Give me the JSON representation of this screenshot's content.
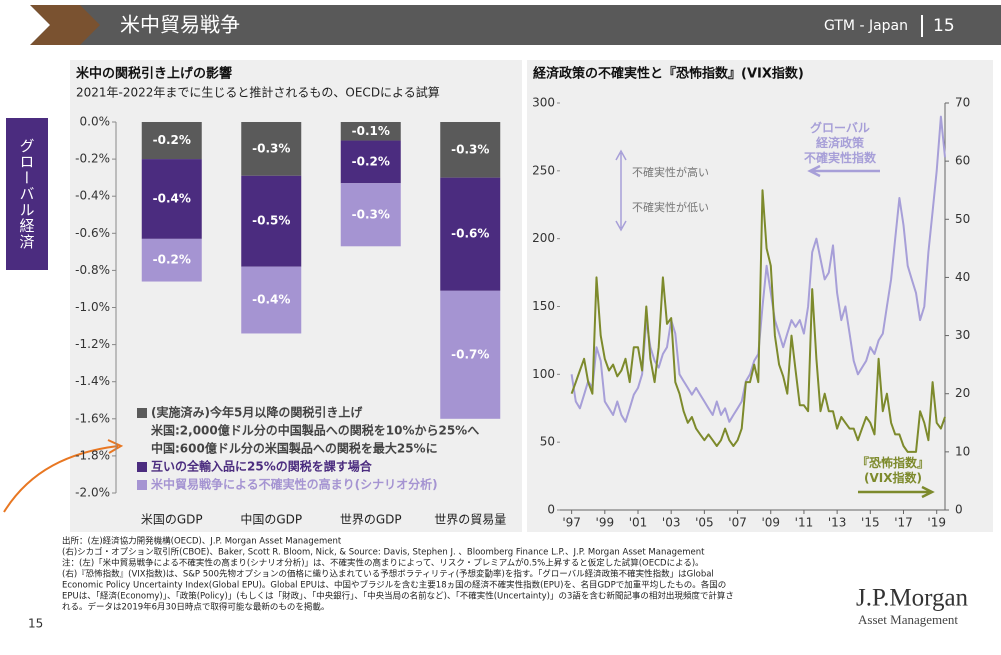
{
  "header": {
    "title": "米中貿易戦争",
    "brand": "GTM - Japan",
    "page": "15"
  },
  "side_tab": "グローバル経済",
  "chart_data": [
    {
      "type": "bar",
      "stacked": true,
      "title": "米中の関税引き上げの影響",
      "subtitle": "2021年-2022年までに生じると推計されるもの、OECDによる試算",
      "categories": [
        "米国のGDP",
        "中国のGDP",
        "世界のGDP",
        "世界の貿易量"
      ],
      "series": [
        {
          "name": "(実施済み)今年5月以降の関税引き上げ",
          "color": "#5a5a5a",
          "values": [
            -0.2,
            -0.29,
            -0.1,
            -0.3
          ],
          "value_labels": [
            "-0.2%",
            "-0.3%",
            "-0.1%",
            "-0.3%"
          ]
        },
        {
          "name": "互いの全輸入品に25%の関税を課す場合",
          "color": "#4b2c7f",
          "values": [
            -0.43,
            -0.49,
            -0.23,
            -0.61
          ],
          "value_labels": [
            "-0.4%",
            "-0.5%",
            "-0.2%",
            "-0.6%"
          ]
        },
        {
          "name": "米中貿易戦争による不確実性の高まり(シナリオ分析)",
          "color": "#a594d2",
          "values": [
            -0.23,
            -0.36,
            -0.34,
            -0.69
          ],
          "value_labels": [
            "-0.2%",
            "-0.4%",
            "-0.3%",
            "-0.7%"
          ]
        }
      ],
      "legend_notes": [
        "米国:2,000億ドル分の中国製品への関税を10%から25%へ",
        "中国:600億ドル分の米国製品への関税を最大25%に"
      ],
      "ylim": [
        -2.0,
        0.0
      ],
      "yticks": [
        {
          "value": 0.0,
          "label": "0.0%"
        },
        {
          "value": -0.2,
          "label": "-0.2%"
        },
        {
          "value": -0.4,
          "label": "-0.4%"
        },
        {
          "value": -0.6,
          "label": "-0.6%"
        },
        {
          "value": -0.8,
          "label": "-0.8%"
        },
        {
          "value": -1.0,
          "label": "-1.0%"
        },
        {
          "value": -1.2,
          "label": "-1.2%"
        },
        {
          "value": -1.4,
          "label": "-1.4%"
        },
        {
          "value": -1.6,
          "label": "-1.6%"
        },
        {
          "value": -1.8,
          "label": "-1.8%"
        },
        {
          "value": -2.0,
          "label": "-2.0%"
        }
      ]
    },
    {
      "type": "line",
      "title": "経済政策の不確実性と『恐怖指数』(VIX指数)",
      "annotations": [
        "不確実性が高い",
        "不確実性が低い"
      ],
      "x": [
        1997,
        1997.25,
        1997.5,
        1997.75,
        1998,
        1998.25,
        1998.5,
        1998.75,
        1999,
        1999.25,
        1999.5,
        1999.75,
        2000,
        2000.25,
        2000.5,
        2000.75,
        2001,
        2001.25,
        2001.5,
        2001.75,
        2002,
        2002.25,
        2002.5,
        2002.75,
        2003,
        2003.25,
        2003.5,
        2003.75,
        2004,
        2004.25,
        2004.5,
        2004.75,
        2005,
        2005.25,
        2005.5,
        2005.75,
        2006,
        2006.25,
        2006.5,
        2006.75,
        2007,
        2007.25,
        2007.5,
        2007.75,
        2008,
        2008.25,
        2008.5,
        2008.75,
        2009,
        2009.25,
        2009.5,
        2009.75,
        2010,
        2010.25,
        2010.5,
        2010.75,
        2011,
        2011.25,
        2011.5,
        2011.75,
        2012,
        2012.25,
        2012.5,
        2012.75,
        2013,
        2013.25,
        2013.5,
        2013.75,
        2014,
        2014.25,
        2014.5,
        2014.75,
        2015,
        2015.25,
        2015.5,
        2015.75,
        2016,
        2016.25,
        2016.5,
        2016.75,
        2017,
        2017.25,
        2017.5,
        2017.75,
        2018,
        2018.25,
        2018.5,
        2018.75,
        2019,
        2019.25,
        2019.5
      ],
      "series": [
        {
          "name": "グローバル\n経済政策\n不確実性指数",
          "color": "#a79fd8",
          "values": [
            100,
            80,
            75,
            85,
            95,
            90,
            120,
            110,
            80,
            75,
            70,
            80,
            70,
            65,
            75,
            85,
            90,
            100,
            140,
            120,
            110,
            105,
            115,
            120,
            140,
            130,
            100,
            95,
            90,
            85,
            90,
            85,
            80,
            75,
            70,
            80,
            70,
            75,
            65,
            70,
            75,
            80,
            95,
            100,
            110,
            115,
            150,
            180,
            160,
            140,
            130,
            120,
            130,
            140,
            135,
            140,
            130,
            150,
            190,
            200,
            185,
            170,
            175,
            195,
            160,
            140,
            150,
            130,
            110,
            100,
            105,
            110,
            120,
            115,
            125,
            130,
            150,
            170,
            200,
            230,
            210,
            180,
            170,
            160,
            140,
            150,
            190,
            220,
            250,
            290,
            260
          ]
        },
        {
          "name": "『恐怖指数』\n(VIX指数)",
          "color": "#7d8a2c",
          "axis": "y2",
          "values": [
            20,
            22,
            24,
            26,
            22,
            20,
            40,
            30,
            26,
            24,
            25,
            23,
            24,
            26,
            22,
            28,
            28,
            24,
            35,
            26,
            22,
            28,
            40,
            32,
            33,
            22,
            20,
            17,
            15,
            16,
            14,
            13,
            12,
            13,
            12,
            11,
            12,
            14,
            12,
            11,
            12,
            14,
            22,
            22,
            25,
            22,
            55,
            45,
            42,
            30,
            25,
            23,
            20,
            30,
            24,
            18,
            18,
            17,
            38,
            26,
            17,
            20,
            17,
            17,
            14,
            16,
            15,
            14,
            14,
            12,
            14,
            16,
            15,
            13,
            26,
            17,
            20,
            15,
            13,
            13,
            11,
            10,
            10,
            10,
            17,
            15,
            12,
            22,
            15,
            14,
            16
          ]
        }
      ],
      "xlim": [
        1996.3,
        2019.5
      ],
      "xticks": [
        {
          "value": 1997,
          "label": "'97"
        },
        {
          "value": 1999,
          "label": "'99"
        },
        {
          "value": 2001,
          "label": "'01"
        },
        {
          "value": 2003,
          "label": "'03"
        },
        {
          "value": 2005,
          "label": "'05"
        },
        {
          "value": 2007,
          "label": "'07"
        },
        {
          "value": 2009,
          "label": "'09"
        },
        {
          "value": 2011,
          "label": "'11"
        },
        {
          "value": 2013,
          "label": "'13"
        },
        {
          "value": 2015,
          "label": "'15"
        },
        {
          "value": 2017,
          "label": "'17"
        },
        {
          "value": 2019,
          "label": "'19"
        }
      ],
      "ylim": [
        0,
        300
      ],
      "yticks": [
        0,
        50,
        100,
        150,
        200,
        250,
        300
      ],
      "y2lim": [
        0,
        70
      ],
      "y2ticks": [
        0,
        10,
        20,
        30,
        40,
        50,
        60,
        70
      ]
    }
  ],
  "footnotes": [
    "出所：(左)経済協力開発機構(OECD)、J.P. Morgan Asset Management",
    "(右)シカゴ・オプション取引所(CBOE)、Baker, Scott R. Bloom, Nick, & Source: Davis, Stephen J. 、Bloomberg Finance L.P.、J.P. Morgan Asset Management",
    "注：(左)「米中貿易戦争による不確実性の高まり(シナリオ分析)」は、不確実性の高まりによって、リスク・プレミアムが0.5%上昇すると仮定した試算(OECDによる)。",
    "(右)『恐怖指数』(VIX指数)は、S&P 500先物オプションの価格に織り込まれている予想ボラティリティ(予想変動率)を指す。「グローバル経済政策不確実性指数」はGlobal",
    "Economic Policy Uncertainty Index(Global EPU)。Global EPUは、中国やブラジルを含む主要18ヵ国の経済不確実性指数(EPU)を、名目GDPで加重平均したもの。各国の",
    "EPUは、「経済(Economy)」、「政策(Policy)」(もしくは「財政」、「中央銀行」、「中央当局の名前など)、「不確実性(Uncertainty)」の3語を含む新聞記事の相対出現頻度で計算さ",
    "れる。データは2019年6月30日時点で取得可能な最新のものを掲載。"
  ],
  "page_number": "15",
  "logo": {
    "name": "J.P.Morgan",
    "sub": "Asset Management"
  }
}
